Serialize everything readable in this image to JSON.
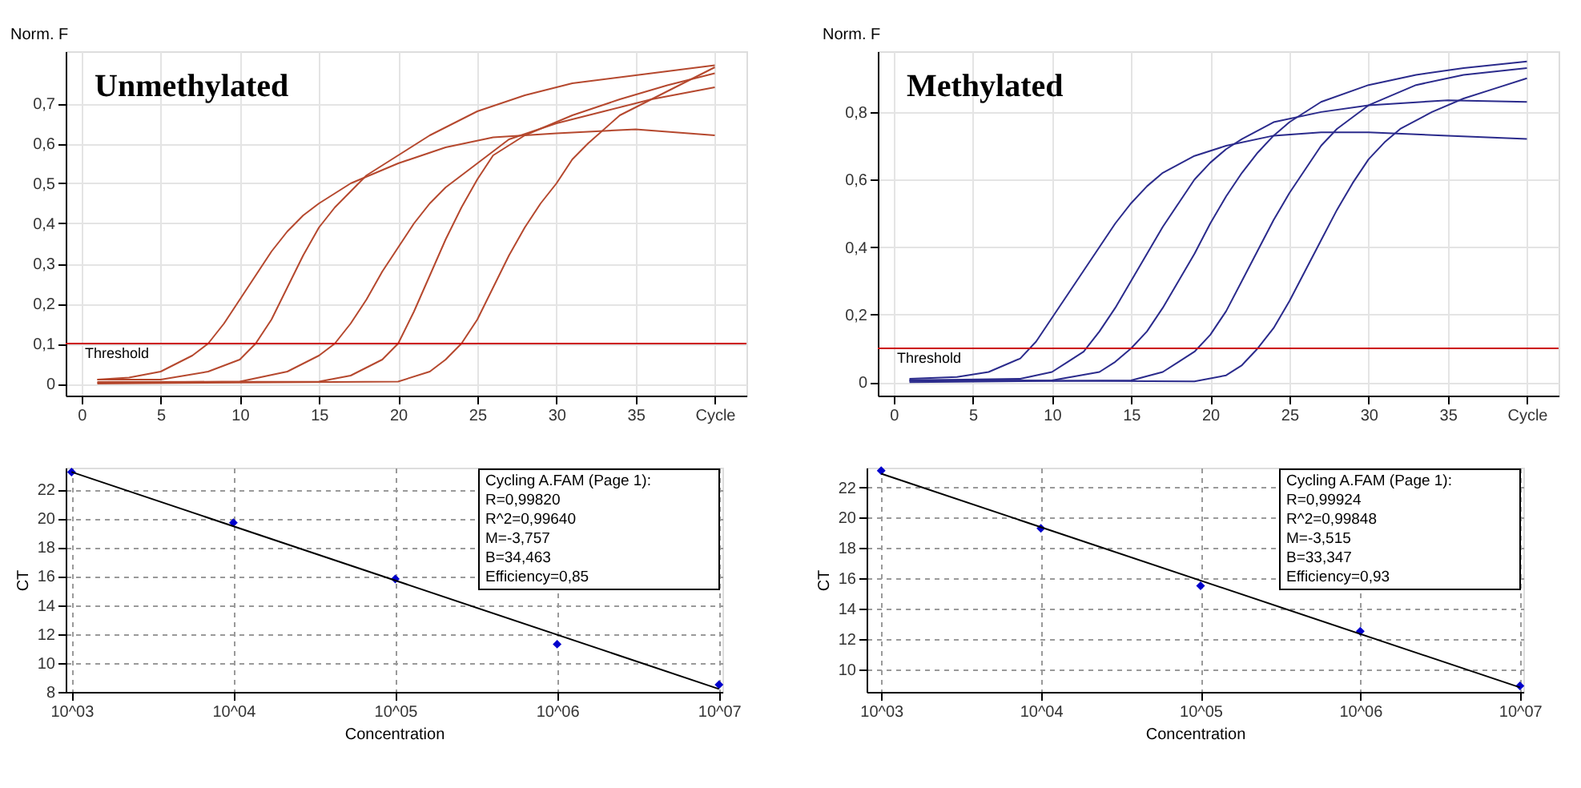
{
  "chart_data": [
    {
      "type": "line",
      "title": "Unmethylated",
      "ylabel": "Norm. F",
      "xlim": [
        -1,
        42
      ],
      "ylim": [
        -0.03,
        0.83
      ],
      "xticks": [
        0,
        5,
        10,
        15,
        20,
        25,
        30,
        35,
        {
          "value": 40,
          "label": "Cycle"
        }
      ],
      "yticks": [
        0,
        {
          "value": 0.1,
          "label": "0,1"
        },
        {
          "value": 0.2,
          "label": "0,2"
        },
        {
          "value": 0.3,
          "label": "0,3"
        },
        {
          "value": 0.4,
          "label": "0,4"
        },
        {
          "value": 0.5,
          "label": "0,5"
        },
        {
          "value": 0.6,
          "label": "0,6"
        },
        {
          "value": 0.7,
          "label": "0,7"
        }
      ],
      "grid": true,
      "marker": "none",
      "line_style": "solid",
      "ref_lines": [
        {
          "axis": "y",
          "value": 0.1,
          "label": "Threshold",
          "color": "#cc0000"
        }
      ],
      "series": [
        {
          "color": "#b5482e",
          "x": [
            1,
            3,
            5,
            7,
            8,
            9,
            10,
            11,
            12,
            13,
            14,
            15,
            17,
            20,
            23,
            26,
            30,
            35,
            40
          ],
          "values": [
            0.01,
            0.015,
            0.03,
            0.07,
            0.1,
            0.15,
            0.21,
            0.27,
            0.33,
            0.38,
            0.42,
            0.45,
            0.5,
            0.55,
            0.59,
            0.615,
            0.625,
            0.635,
            0.62
          ]
        },
        {
          "color": "#b5482e",
          "x": [
            1,
            5,
            8,
            10,
            11,
            12,
            13,
            14,
            15,
            16,
            17,
            18,
            20,
            22,
            25,
            28,
            31,
            35,
            40
          ],
          "values": [
            0.01,
            0.01,
            0.03,
            0.06,
            0.1,
            0.16,
            0.24,
            0.32,
            0.39,
            0.44,
            0.48,
            0.52,
            0.57,
            0.62,
            0.68,
            0.72,
            0.75,
            0.77,
            0.795
          ]
        },
        {
          "color": "#b5482e",
          "x": [
            1,
            10,
            13,
            15,
            16,
            17,
            18,
            19,
            20,
            21,
            22,
            23,
            25,
            27,
            30,
            33,
            36,
            40
          ],
          "values": [
            0.002,
            0.005,
            0.03,
            0.07,
            0.1,
            0.15,
            0.21,
            0.28,
            0.34,
            0.4,
            0.45,
            0.49,
            0.55,
            0.61,
            0.65,
            0.68,
            0.71,
            0.74
          ]
        },
        {
          "color": "#b5482e",
          "x": [
            1,
            15,
            17,
            19,
            20,
            21,
            22,
            23,
            24,
            25,
            26,
            28,
            31,
            34,
            37,
            40
          ],
          "values": [
            0.004,
            0.005,
            0.02,
            0.06,
            0.1,
            0.18,
            0.27,
            0.36,
            0.44,
            0.51,
            0.57,
            0.62,
            0.67,
            0.71,
            0.745,
            0.775
          ]
        },
        {
          "color": "#b5482e",
          "x": [
            1,
            20,
            22,
            23,
            24,
            25,
            26,
            27,
            28,
            29,
            30,
            31,
            32,
            34,
            36,
            38,
            40
          ],
          "values": [
            0,
            0.005,
            0.03,
            0.06,
            0.1,
            0.16,
            0.24,
            0.32,
            0.39,
            0.45,
            0.5,
            0.56,
            0.6,
            0.67,
            0.71,
            0.75,
            0.79
          ]
        }
      ]
    },
    {
      "type": "line",
      "title": "Methylated",
      "ylabel": "Norm. F",
      "xlim": [
        -1,
        42
      ],
      "ylim": [
        -0.04,
        0.98
      ],
      "xticks": [
        0,
        5,
        10,
        15,
        20,
        25,
        30,
        35,
        {
          "value": 40,
          "label": "Cycle"
        }
      ],
      "yticks": [
        0,
        {
          "value": 0.2,
          "label": "0,2"
        },
        {
          "value": 0.4,
          "label": "0,4"
        },
        {
          "value": 0.6,
          "label": "0,6"
        },
        {
          "value": 0.8,
          "label": "0,8"
        }
      ],
      "grid": true,
      "marker": "none",
      "line_style": "solid",
      "ref_lines": [
        {
          "axis": "y",
          "value": 0.1,
          "label": "Threshold",
          "color": "#cc0000"
        }
      ],
      "series": [
        {
          "color": "#2b2b8c",
          "x": [
            1,
            4,
            6,
            8,
            9,
            10,
            11,
            12,
            13,
            14,
            15,
            16,
            17,
            19,
            21,
            24,
            27,
            30,
            35,
            40
          ],
          "values": [
            0.01,
            0.015,
            0.03,
            0.07,
            0.12,
            0.19,
            0.26,
            0.33,
            0.4,
            0.47,
            0.53,
            0.58,
            0.62,
            0.67,
            0.7,
            0.73,
            0.74,
            0.74,
            0.73,
            0.72
          ]
        },
        {
          "color": "#2b2b8c",
          "x": [
            1,
            8,
            10,
            11,
            12,
            13,
            14,
            15,
            16,
            17,
            18,
            19,
            20,
            21,
            22,
            24,
            27,
            30,
            35,
            40
          ],
          "values": [
            0.005,
            0.01,
            0.03,
            0.06,
            0.09,
            0.15,
            0.22,
            0.3,
            0.38,
            0.46,
            0.53,
            0.6,
            0.65,
            0.69,
            0.72,
            0.77,
            0.8,
            0.82,
            0.835,
            0.83
          ]
        },
        {
          "color": "#2b2b8c",
          "x": [
            1,
            10,
            13,
            14,
            15,
            16,
            17,
            18,
            19,
            20,
            21,
            22,
            23,
            24,
            25,
            27,
            30,
            33,
            36,
            40
          ],
          "values": [
            0.003,
            0.005,
            0.03,
            0.06,
            0.1,
            0.15,
            0.22,
            0.3,
            0.38,
            0.47,
            0.55,
            0.62,
            0.68,
            0.73,
            0.77,
            0.83,
            0.88,
            0.91,
            0.93,
            0.95
          ]
        },
        {
          "color": "#2b2b8c",
          "x": [
            1,
            15,
            17,
            18,
            19,
            20,
            21,
            22,
            23,
            24,
            25,
            26,
            27,
            28,
            30,
            33,
            36,
            40
          ],
          "values": [
            0,
            0.005,
            0.03,
            0.06,
            0.09,
            0.14,
            0.21,
            0.3,
            0.39,
            0.48,
            0.56,
            0.63,
            0.7,
            0.75,
            0.82,
            0.88,
            0.91,
            0.93
          ]
        },
        {
          "color": "#2b2b8c",
          "x": [
            1,
            19,
            21,
            22,
            23,
            24,
            25,
            26,
            27,
            28,
            29,
            30,
            31,
            32,
            34,
            36,
            38,
            40
          ],
          "values": [
            0.006,
            0.002,
            0.02,
            0.05,
            0.1,
            0.16,
            0.24,
            0.33,
            0.42,
            0.51,
            0.59,
            0.66,
            0.71,
            0.75,
            0.8,
            0.84,
            0.87,
            0.9
          ]
        }
      ]
    },
    {
      "type": "scatter",
      "xlabel": "Concentration",
      "ylabel": "CT",
      "log": "x",
      "xlim": [
        920,
        10500000
      ],
      "ylim": [
        8,
        23.5
      ],
      "xticks": [
        {
          "value": 1000,
          "label": "10^03"
        },
        {
          "value": 10000,
          "label": "10^04"
        },
        {
          "value": 100000,
          "label": "10^05"
        },
        {
          "value": 1000000,
          "label": "10^06"
        },
        {
          "value": 10000000,
          "label": "10^07"
        }
      ],
      "yticks": [
        8,
        10,
        12,
        14,
        16,
        18,
        20,
        22
      ],
      "grid": true,
      "annotations": [
        "Cycling A.FAM (Page 1):",
        "R=0,99820",
        "R^2=0,99640",
        "M=-3,757",
        "B=34,463",
        "Efficiency=0,85"
      ],
      "series": [
        {
          "type": "scatter",
          "color": "#0000cc",
          "marker": "diamond",
          "x": [
            1000,
            10000,
            100000,
            1000000,
            10000000
          ],
          "values": [
            23.2,
            19.7,
            15.8,
            11.3,
            8.5
          ]
        },
        {
          "type": "line",
          "color": "#000000",
          "x": [
            1000,
            10000000
          ],
          "values": [
            23.2,
            8.2
          ]
        }
      ]
    },
    {
      "type": "scatter",
      "xlabel": "Concentration",
      "ylabel": "CT",
      "log": "x",
      "xlim": [
        810,
        10500000
      ],
      "ylim": [
        8.5,
        23.3
      ],
      "xticks": [
        {
          "value": 1000,
          "label": "10^03"
        },
        {
          "value": 10000,
          "label": "10^04"
        },
        {
          "value": 100000,
          "label": "10^05"
        },
        {
          "value": 1000000,
          "label": "10^06"
        },
        {
          "value": 10000000,
          "label": "10^07"
        }
      ],
      "yticks": [
        10,
        12,
        14,
        16,
        18,
        20,
        22
      ],
      "grid": true,
      "annotations": [
        "Cycling A.FAM (Page 1):",
        "R=0,99924",
        "R^2=0,99848",
        "M=-3,515",
        "B=33,347",
        "Efficiency=0,93"
      ],
      "series": [
        {
          "type": "scatter",
          "color": "#0000cc",
          "marker": "diamond",
          "x": [
            1000,
            10000,
            100000,
            1000000,
            10000000
          ],
          "values": [
            23.1,
            19.3,
            15.5,
            12.5,
            8.9
          ]
        },
        {
          "type": "line",
          "color": "#000000",
          "x": [
            1000,
            10000000
          ],
          "values": [
            22.9,
            8.8
          ]
        }
      ]
    }
  ]
}
